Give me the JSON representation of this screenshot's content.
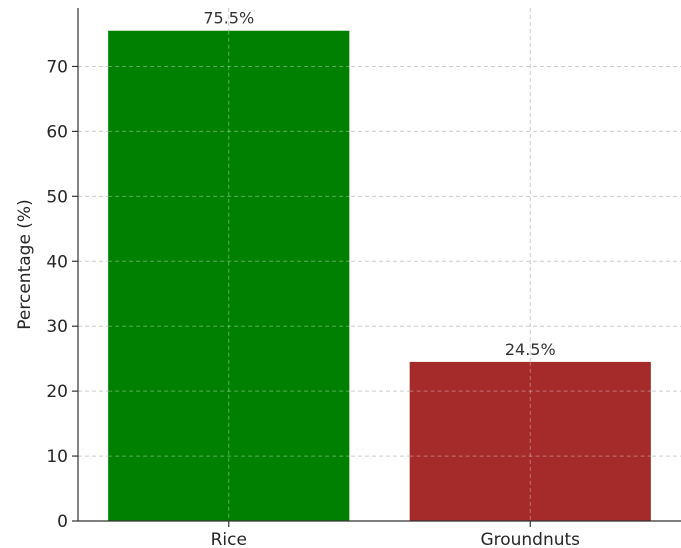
{
  "chart_data": {
    "type": "bar",
    "categories": [
      "Rice",
      "Groundnuts"
    ],
    "values": [
      75.5,
      24.5
    ],
    "data_labels": [
      "75.5%",
      "24.5%"
    ],
    "colors": [
      "#008000",
      "#a52a2a"
    ],
    "title": "",
    "xlabel": "",
    "ylabel": "Percentage (%)",
    "ylim": [
      0,
      79
    ],
    "yticks": [
      0,
      10,
      20,
      30,
      40,
      50,
      60,
      70
    ],
    "grid": true,
    "legend": "none"
  }
}
